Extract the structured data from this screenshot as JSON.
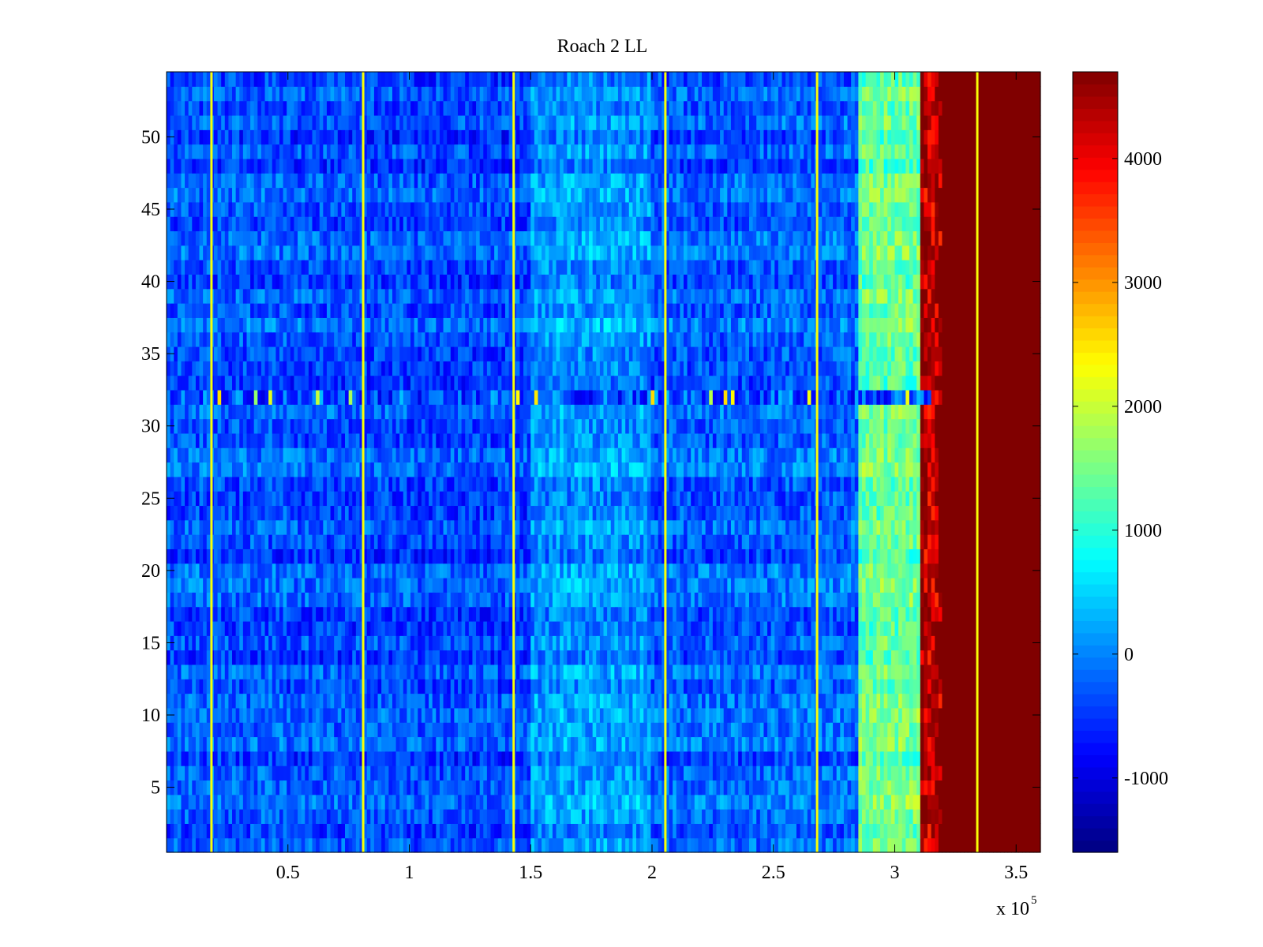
{
  "chart_data": {
    "type": "heatmap",
    "title": "Roach 2 LL",
    "xlabel": "",
    "ylabel": "",
    "x_multiplier_label": "x 10",
    "x_multiplier_exponent": "5",
    "xlim": [
      0.0,
      3.6
    ],
    "ylim": [
      0.5,
      54.5
    ],
    "x_ticks": [
      0.5,
      1.0,
      1.5,
      2.0,
      2.5,
      3.0,
      3.5
    ],
    "x_tick_labels": [
      "0.5",
      "1",
      "1.5",
      "2",
      "2.5",
      "3",
      "3.5"
    ],
    "y_ticks": [
      5,
      10,
      15,
      20,
      25,
      30,
      35,
      40,
      45,
      50
    ],
    "y_tick_labels": [
      "5",
      "10",
      "15",
      "20",
      "25",
      "30",
      "35",
      "40",
      "45",
      "50"
    ],
    "rows": 54,
    "colormap": "jet",
    "color_range": [
      -1600,
      4700
    ],
    "colorbar_ticks": [
      -1000,
      0,
      1000,
      2000,
      3000,
      4000
    ],
    "colorbar_tick_labels": [
      "-1000",
      "0",
      "1000",
      "2000",
      "3000",
      "4000"
    ],
    "saturation_edge_x": 3.13,
    "saturated_value": 4700,
    "vertical_spike_columns_x": [
      0.185,
      0.81,
      1.43,
      2.055,
      2.68,
      3.34
    ],
    "spike_value": 2300,
    "anomalous_row": 32,
    "band_means": [
      {
        "x_start": 0.0,
        "x_end": 0.5,
        "value": -300
      },
      {
        "x_start": 0.5,
        "x_end": 1.0,
        "value": -350
      },
      {
        "x_start": 1.0,
        "x_end": 1.5,
        "value": -400
      },
      {
        "x_start": 1.5,
        "x_end": 2.0,
        "value": 100
      },
      {
        "x_start": 2.0,
        "x_end": 2.5,
        "value": -250
      },
      {
        "x_start": 2.5,
        "x_end": 2.85,
        "value": -200
      },
      {
        "x_start": 2.85,
        "x_end": 3.1,
        "value": 1400
      },
      {
        "x_start": 3.1,
        "x_end": 3.6,
        "value": 4700
      }
    ]
  },
  "colors": {
    "axes": "#000000",
    "background": "#ffffff"
  }
}
